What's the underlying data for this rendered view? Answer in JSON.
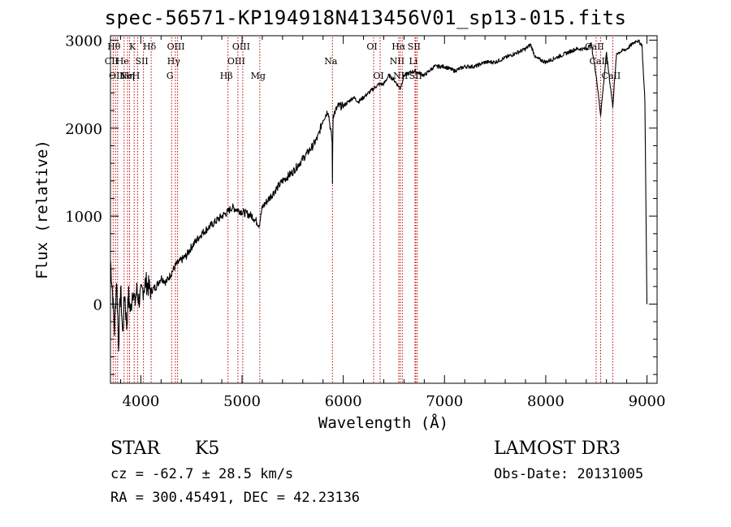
{
  "chart_data": {
    "type": "line",
    "title": "spec-56571-KP194918N413456V01_sp13-015.fits",
    "xlabel": "Wavelength (Å)",
    "ylabel": "Flux (relative)",
    "xlim": [
      3700,
      9100
    ],
    "ylim": [
      -900,
      3050
    ],
    "x_ticks": [
      4000,
      5000,
      6000,
      7000,
      8000,
      9000
    ],
    "y_ticks": [
      0,
      1000,
      2000,
      3000
    ],
    "grid": false,
    "series": [
      {
        "name": "Flux",
        "x": [
          3700,
          3720,
          3740,
          3760,
          3780,
          3800,
          3820,
          3840,
          3860,
          3880,
          3900,
          3920,
          3940,
          3960,
          3980,
          4000,
          4050,
          4100,
          4150,
          4200,
          4250,
          4300,
          4350,
          4400,
          4450,
          4500,
          4600,
          4700,
          4800,
          4861,
          4900,
          5000,
          5100,
          5170,
          5200,
          5300,
          5400,
          5500,
          5600,
          5700,
          5750,
          5800,
          5850,
          5890,
          5893,
          5896,
          5900,
          5950,
          6000,
          6050,
          6100,
          6150,
          6200,
          6250,
          6300,
          6350,
          6400,
          6450,
          6500,
          6563,
          6600,
          6700,
          6800,
          6900,
          7000,
          7100,
          7200,
          7300,
          7400,
          7500,
          7600,
          7700,
          7800,
          7850,
          7900,
          8000,
          8100,
          8200,
          8300,
          8400,
          8450,
          8498,
          8542,
          8600,
          8662,
          8700,
          8800,
          8850,
          8900,
          8950,
          8980,
          9000
        ],
        "values": [
          500,
          150,
          -300,
          300,
          -450,
          200,
          -350,
          150,
          -250,
          100,
          -100,
          200,
          0,
          150,
          50,
          100,
          250,
          150,
          200,
          300,
          250,
          350,
          450,
          500,
          550,
          650,
          800,
          900,
          1000,
          1050,
          1100,
          1050,
          1000,
          900,
          1100,
          1250,
          1400,
          1500,
          1650,
          1800,
          1900,
          2100,
          2200,
          1850,
          1400,
          1850,
          2150,
          2250,
          2250,
          2300,
          2350,
          2300,
          2350,
          2400,
          2450,
          2500,
          2500,
          2600,
          2550,
          2450,
          2600,
          2650,
          2600,
          2700,
          2700,
          2650,
          2700,
          2700,
          2750,
          2750,
          2800,
          2850,
          2900,
          2950,
          2800,
          2750,
          2800,
          2850,
          2900,
          2900,
          2950,
          2600,
          2150,
          2850,
          2250,
          2850,
          2900,
          2950,
          3000,
          2950,
          2300,
          0
        ]
      }
    ],
    "lines": [
      {
        "x": 3727,
        "top": "CII",
        "row": 2
      },
      {
        "x": 3750,
        "top": "Hθ",
        "row": 1
      },
      {
        "x": 3771,
        "top": "OII",
        "row": 3
      },
      {
        "x": 3835,
        "top": "He",
        "row": 2
      },
      {
        "x": 3869,
        "top": "Ne",
        "row": 3
      },
      {
        "x": 3889,
        "top": "Hη",
        "row": 3
      },
      {
        "x": 3934,
        "top": "K",
        "row": 1
      },
      {
        "x": 3968,
        "top": "H",
        "row": 3
      },
      {
        "x": 4026,
        "top": "SII",
        "row": 2
      },
      {
        "x": 4102,
        "top": "Hδ",
        "row": 1
      },
      {
        "x": 4304,
        "top": "G",
        "row": 3
      },
      {
        "x": 4341,
        "top": "Hγ",
        "row": 2
      },
      {
        "x": 4363,
        "top": "OIII",
        "row": 1
      },
      {
        "x": 4861,
        "top": "Hβ",
        "row": 3
      },
      {
        "x": 4959,
        "top": "OIII",
        "row": 2
      },
      {
        "x": 5007,
        "top": "OIII",
        "row": 1
      },
      {
        "x": 5175,
        "top": "Mg",
        "row": 3
      },
      {
        "x": 5893,
        "top": "Na",
        "row": 2
      },
      {
        "x": 6300,
        "top": "OI",
        "row": 1
      },
      {
        "x": 6364,
        "top": "OI",
        "row": 3
      },
      {
        "x": 6548,
        "top": "NII",
        "row": 2
      },
      {
        "x": 6563,
        "top": "Hα",
        "row": 1
      },
      {
        "x": 6583,
        "top": "NII",
        "row": 3
      },
      {
        "x": 6708,
        "top": "Li",
        "row": 2
      },
      {
        "x": 6716,
        "top": "SII",
        "row": 1
      },
      {
        "x": 6731,
        "top": "SII",
        "row": 3
      },
      {
        "x": 8498,
        "top": "CaII",
        "row": 1
      },
      {
        "x": 8542,
        "top": "CaII",
        "row": 2
      },
      {
        "x": 8662,
        "top": "CaII",
        "row": 3
      }
    ]
  },
  "info": {
    "object_class": "STAR",
    "subclass": "K5",
    "cz": "cz = -62.7 ± 28.5 km/s",
    "radec": "RA = 300.45491, DEC =  42.23136",
    "survey": "LAMOST DR3",
    "obs_date": "Obs-Date: 20131005"
  }
}
